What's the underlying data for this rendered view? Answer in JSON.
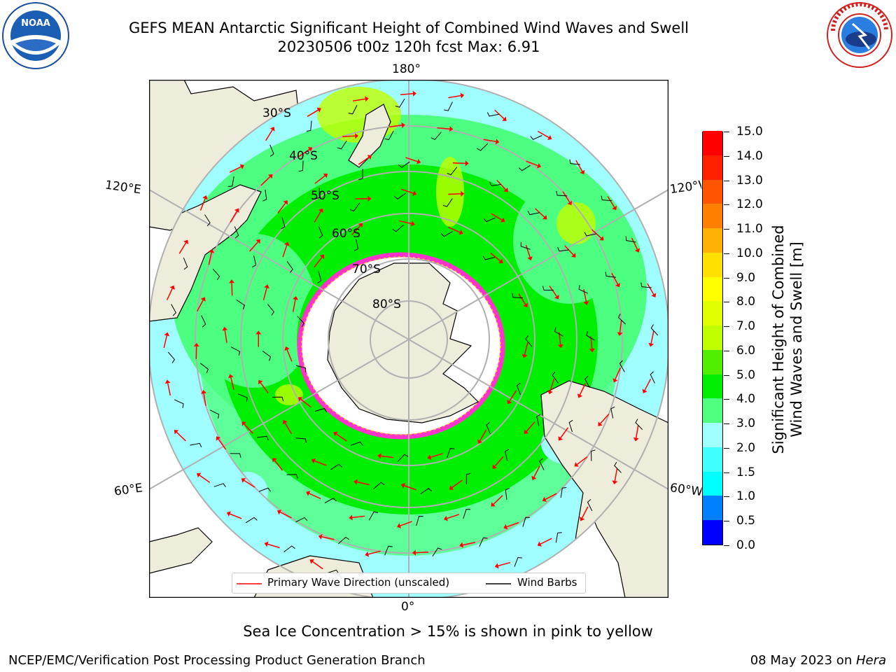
{
  "header": {
    "title_line1": "GEFS MEAN Antarctic Significant Height of Combined Wind Waves and Swell",
    "title_line2": "20230506 t00z 120h fcst   Max: 6.91"
  },
  "logos": {
    "left": "NOAA",
    "right_text": "NATIONAL WEATHER SERVICE"
  },
  "map": {
    "projection": "south-polar-stereographic",
    "lon_labels": {
      "top": "180°",
      "bottom": "0°",
      "left_upper": "120°E",
      "left_lower": "60°E",
      "right_upper": "120°W",
      "right_lower": "60°W"
    },
    "lat_labels": [
      "30°S",
      "40°S",
      "50°S",
      "60°S",
      "70°S",
      "80°S"
    ],
    "colors": {
      "ocean_low": "#9ffcff",
      "ocean_mid": "#4dff80",
      "ocean_high": "#00ee00",
      "land": "#eeecdb",
      "ice": "#ff33cc",
      "grid": "#b0b0b0"
    }
  },
  "colorbar": {
    "label": "Significant Height of Combined Wind Waves and Swell [m]",
    "label_line1": "Significant Height of Combined",
    "label_line2": "Wind Waves and Swell [m]",
    "ticks": [
      "0.0",
      "0.5",
      "1.0",
      "1.5",
      "2.0",
      "3.0",
      "4.0",
      "5.0",
      "6.0",
      "7.0",
      "8.0",
      "9.0",
      "10.0",
      "11.0",
      "12.0",
      "13.0",
      "14.0",
      "15.0"
    ],
    "colors": [
      "#0000ff",
      "#0080ff",
      "#00ffff",
      "#40ffff",
      "#a0ffff",
      "#50ff80",
      "#00ee00",
      "#50ee00",
      "#c0ff00",
      "#e0ff00",
      "#ffff00",
      "#ffe000",
      "#ffb000",
      "#ff8000",
      "#ff5500",
      "#ff2000",
      "#ff0000"
    ]
  },
  "legend": {
    "primary_wave": "Primary Wave Direction (unscaled)",
    "wind_barbs": "Wind Barbs",
    "primary_color": "#ff0000",
    "barb_color": "#000000"
  },
  "subtitle": "Sea Ice Concentration > 15% is shown in pink to yellow",
  "footer": {
    "left": "NCEP/EMC/Verification Post Processing Product Generation Branch",
    "right_date": "08 May 2023 on ",
    "right_host": "Hera"
  }
}
